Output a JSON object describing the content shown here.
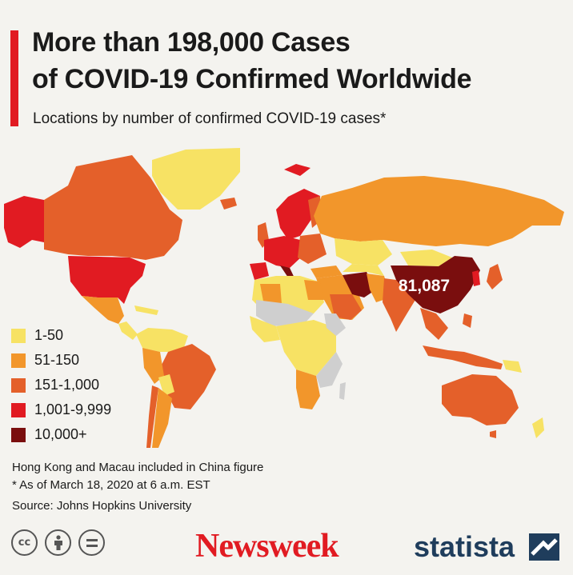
{
  "header": {
    "title_line1": "More than 198,000 Cases",
    "title_line2": "of COVID-19 Confirmed Worldwide",
    "subtitle": "Locations by number of confirmed COVID-19 cases*",
    "accent_color": "#e11b22"
  },
  "map": {
    "china_label": "81,087",
    "colors": {
      "1-50": "#f7e264",
      "51-150": "#f2962b",
      "151-1,000": "#e4602a",
      "1,001-9,999": "#e11b22",
      "10,000+": "#7a0e0e",
      "no_data": "#cfcfcf"
    }
  },
  "legend": [
    {
      "label": "1-50",
      "color": "#f7e264"
    },
    {
      "label": "51-150",
      "color": "#f2962b"
    },
    {
      "label": "151-1,000",
      "color": "#e4602a"
    },
    {
      "label": "1,001-9,999",
      "color": "#e11b22"
    },
    {
      "label": "10,000+",
      "color": "#7a0e0e"
    }
  ],
  "notes": {
    "line1": "Hong Kong and Macau included in China figure",
    "line2": "* As of March 18, 2020 at 6 a.m. EST",
    "source": "Source: Johns Hopkins University"
  },
  "footer": {
    "cc_icons": [
      "cc-icon",
      "attribution-icon",
      "no-derivatives-icon"
    ],
    "cc_text": "cc",
    "newsweek": "Newsweek",
    "statista": "statista",
    "newsweek_color": "#e11b22",
    "statista_color": "#1f3d5c"
  }
}
